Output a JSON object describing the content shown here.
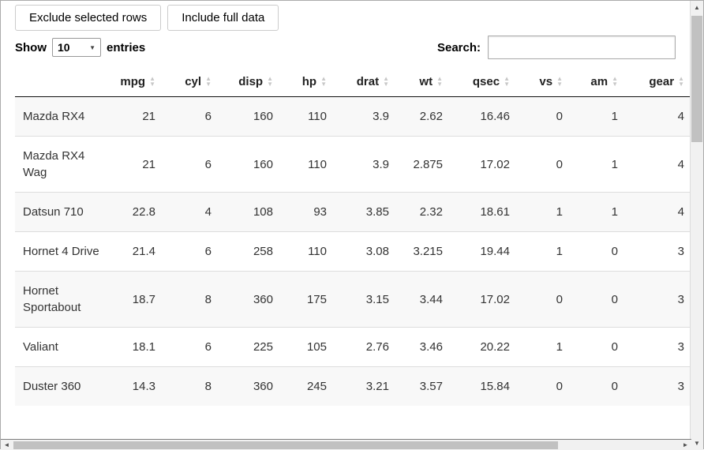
{
  "toolbar": {
    "exclude_button": "Exclude selected rows",
    "include_button": "Include full data"
  },
  "controls": {
    "show_label": "Show",
    "page_length": "10",
    "entries_label": "entries",
    "search_label": "Search:",
    "search_value": ""
  },
  "icons": {
    "sort_asc": "▲",
    "sort_desc": "▼",
    "dropdown_caret": "▼",
    "scroll_up": "▲",
    "scroll_down": "▼",
    "scroll_left": "◄",
    "scroll_right": "►"
  },
  "table": {
    "columns": [
      "",
      "mpg",
      "cyl",
      "disp",
      "hp",
      "drat",
      "wt",
      "qsec",
      "vs",
      "am",
      "gear"
    ],
    "rows": [
      {
        "name": "Mazda RX4",
        "values": [
          "21",
          "6",
          "160",
          "110",
          "3.9",
          "2.62",
          "16.46",
          "0",
          "1",
          "4"
        ]
      },
      {
        "name": "Mazda RX4 Wag",
        "values": [
          "21",
          "6",
          "160",
          "110",
          "3.9",
          "2.875",
          "17.02",
          "0",
          "1",
          "4"
        ]
      },
      {
        "name": "Datsun 710",
        "values": [
          "22.8",
          "4",
          "108",
          "93",
          "3.85",
          "2.32",
          "18.61",
          "1",
          "1",
          "4"
        ]
      },
      {
        "name": "Hornet 4 Drive",
        "values": [
          "21.4",
          "6",
          "258",
          "110",
          "3.08",
          "3.215",
          "19.44",
          "1",
          "0",
          "3"
        ]
      },
      {
        "name": "Hornet Sportabout",
        "values": [
          "18.7",
          "8",
          "360",
          "175",
          "3.15",
          "3.44",
          "17.02",
          "0",
          "0",
          "3"
        ]
      },
      {
        "name": "Valiant",
        "values": [
          "18.1",
          "6",
          "225",
          "105",
          "2.76",
          "3.46",
          "20.22",
          "1",
          "0",
          "3"
        ]
      },
      {
        "name": "Duster 360",
        "values": [
          "14.3",
          "8",
          "360",
          "245",
          "3.21",
          "3.57",
          "15.84",
          "0",
          "0",
          "3"
        ]
      }
    ]
  }
}
